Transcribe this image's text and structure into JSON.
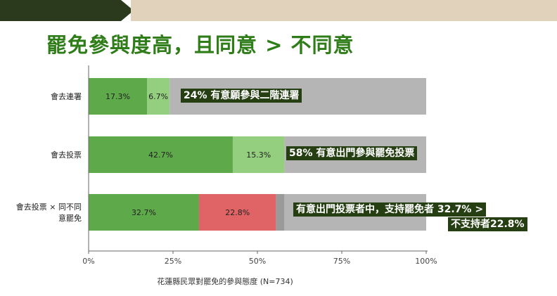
{
  "headline": "罷免參與度高，且同意 > 不同意",
  "colors": {
    "banner_dark": "#2b3a1c",
    "banner_light": "#e1d3bb",
    "headline": "#2e7d18",
    "green": "#5ea94a",
    "light_green": "#93cf7e",
    "red": "#e06466",
    "gray": "#b5b5b5",
    "callout_bg": "#253f12"
  },
  "callouts": [
    {
      "lines": [
        "24% 有意願參與二階連署"
      ]
    },
    {
      "lines": [
        "58% 有意出門參與罷免投票"
      ]
    },
    {
      "lines": [
        "有意出門投票者中，支持罷免者 32.7% >",
        "不支持者22.8%"
      ]
    }
  ],
  "chart_data": {
    "type": "bar",
    "orientation": "horizontal",
    "stacked": true,
    "categories": [
      [
        "會去連署"
      ],
      [
        "會去投票"
      ],
      [
        "會去投票 × 同不同",
        "意罷免"
      ]
    ],
    "bars": [
      {
        "segments": [
          {
            "value": 17.3,
            "label": "17.3%",
            "color": "#5ea94a"
          },
          {
            "value": 6.7,
            "label": "6.7%",
            "color": "#93cf7e"
          },
          {
            "value": 76.0,
            "label": "",
            "color": "#b5b5b5"
          }
        ]
      },
      {
        "segments": [
          {
            "value": 42.7,
            "label": "42.7%",
            "color": "#5ea94a"
          },
          {
            "value": 15.3,
            "label": "15.3%",
            "color": "#93cf7e"
          },
          {
            "value": 42.0,
            "label": "",
            "color": "#b5b5b5"
          }
        ]
      },
      {
        "segments": [
          {
            "value": 32.7,
            "label": "32.7%",
            "color": "#5ea94a"
          },
          {
            "value": 22.8,
            "label": "22.8%",
            "color": "#e06466"
          },
          {
            "value": 2.5,
            "label": "",
            "color": "#9a9a9a"
          },
          {
            "value": 42.0,
            "label": "",
            "color": "#b5b5b5"
          }
        ]
      }
    ],
    "xticks": [
      "0%",
      "25%",
      "50%",
      "75%",
      "100%"
    ],
    "xlim": [
      0,
      100
    ],
    "xlabel": "花蓮縣民眾對罷免的參與態度 (N=734)",
    "grid": false
  }
}
